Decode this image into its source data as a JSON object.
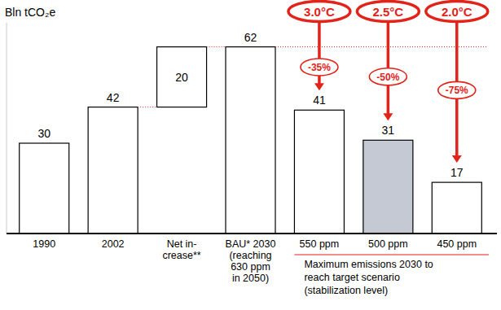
{
  "chart_data": {
    "type": "bar",
    "title": "Bln tCO₂e",
    "categories": [
      "1990",
      "2002",
      "Net in-\ncrease**",
      "BAU* 2030\n(reaching\n630 ppm\nin 2050)",
      "550 ppm",
      "500 ppm",
      "450 ppm"
    ],
    "series": [
      {
        "type": "bar",
        "values": [
          30,
          42,
          null,
          62,
          41,
          31,
          17
        ],
        "colors": [
          "#ffffff",
          "#ffffff",
          null,
          "#ffffff",
          "#ffffff",
          "#c4c9d3",
          "#ffffff"
        ]
      },
      {
        "type": "waterfall",
        "values": [
          null,
          null,
          20,
          null,
          null,
          null,
          null
        ],
        "color": "#ffffff"
      }
    ],
    "ylim": [
      0,
      70
    ],
    "grid": false,
    "tick_labels": false,
    "data_labels": true,
    "annotations": [
      {
        "label": "3.0°C",
        "change": "-35%"
      },
      {
        "label": "2.5°C",
        "change": "-50%"
      },
      {
        "label": "2.0°C",
        "change": "-75%"
      }
    ],
    "bracket_label": "Maximum emissions 2030 to\nreach target scenario\n(stabilization level)"
  }
}
